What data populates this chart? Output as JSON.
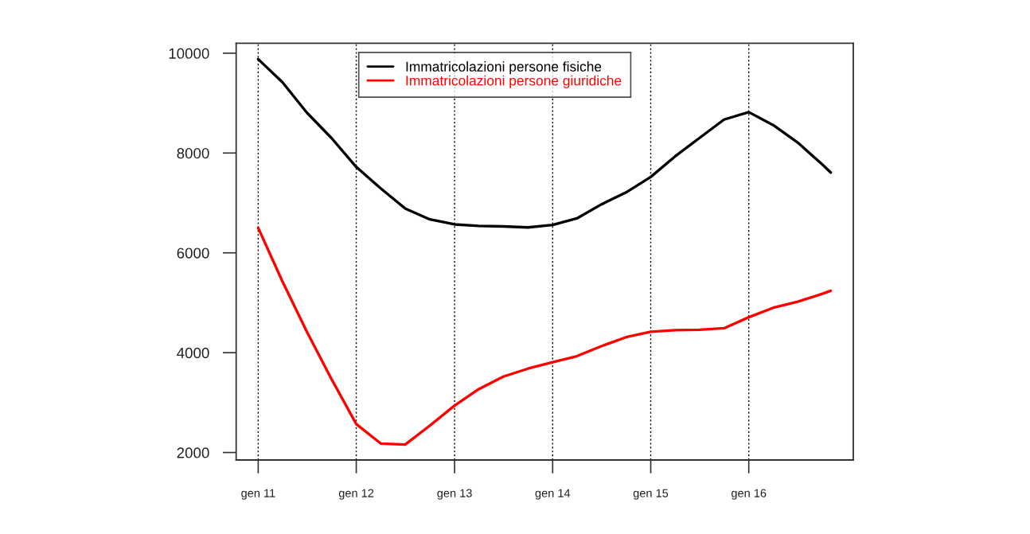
{
  "chart_data": {
    "type": "line",
    "x": [
      "2011-01",
      "2011-04",
      "2011-07",
      "2011-10",
      "2012-01",
      "2012-04",
      "2012-07",
      "2012-10",
      "2013-01",
      "2013-04",
      "2013-07",
      "2013-10",
      "2014-01",
      "2014-04",
      "2014-07",
      "2014-10",
      "2015-01",
      "2015-04",
      "2015-07",
      "2015-10",
      "2016-01",
      "2016-04",
      "2016-07",
      "2016-10",
      "2016-11"
    ],
    "series": [
      {
        "name": "Immatricolazioni persone fisiche",
        "color": "#000000",
        "values": [
          9880,
          9420,
          8810,
          8300,
          7720,
          7290,
          6890,
          6670,
          6570,
          6540,
          6530,
          6510,
          6560,
          6690,
          6970,
          7210,
          7520,
          7930,
          8300,
          8670,
          8820,
          8560,
          8210,
          7770,
          7610
        ]
      },
      {
        "name": "Immatricolazioni persone giuridiche",
        "color": "#ff0000",
        "values": [
          6500,
          5430,
          4420,
          3470,
          2570,
          2180,
          2160,
          2540,
          2940,
          3270,
          3520,
          3680,
          3810,
          3930,
          4130,
          4310,
          4420,
          4450,
          4460,
          4490,
          4710,
          4900,
          5020,
          5180,
          5240
        ]
      }
    ],
    "xlim": [
      "2010-10-11",
      "2017-01-24"
    ],
    "xticks": [
      {
        "value": "2011-01",
        "label": "gen 11"
      },
      {
        "value": "2012-01",
        "label": "gen 12"
      },
      {
        "value": "2013-01",
        "label": "gen 13"
      },
      {
        "value": "2014-01",
        "label": "gen 14"
      },
      {
        "value": "2015-01",
        "label": "gen 15"
      },
      {
        "value": "2016-01",
        "label": "gen 16"
      }
    ],
    "ylim": [
      1850,
      10200
    ],
    "yticks": [
      2000,
      4000,
      6000,
      8000,
      10000
    ],
    "grid": "x",
    "legend": "top"
  }
}
